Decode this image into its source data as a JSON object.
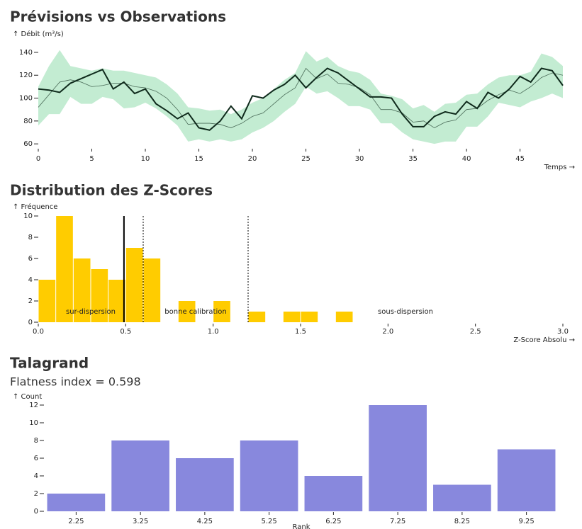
{
  "chart_data": [
    {
      "type": "line",
      "title": "Prévisions vs Observations",
      "y_label": "↑ Débit (m³/s)",
      "x_label": "Temps →",
      "x": [
        0,
        1,
        2,
        3,
        4,
        5,
        6,
        7,
        8,
        9,
        10,
        11,
        12,
        13,
        14,
        15,
        16,
        17,
        18,
        19,
        20,
        21,
        22,
        23,
        24,
        25,
        26,
        27,
        28,
        29,
        30,
        31,
        32,
        33,
        34,
        35,
        36,
        37,
        38,
        39,
        40,
        41,
        42,
        43,
        44,
        45,
        46,
        47,
        48,
        49
      ],
      "band": {
        "color": "#c3ecd2",
        "lower": [
          76,
          86,
          86,
          101,
          95,
          95,
          101,
          99,
          91,
          92,
          96,
          91,
          84,
          76,
          62,
          64,
          62,
          64,
          62,
          64,
          70,
          74,
          80,
          88,
          95,
          110,
          104,
          106,
          100,
          93,
          93,
          90,
          78,
          78,
          70,
          64,
          62,
          60,
          62,
          62,
          75,
          75,
          84,
          96,
          94,
          92,
          97,
          100,
          104,
          100
        ],
        "upper": [
          110,
          128,
          142,
          128,
          126,
          124,
          126,
          124,
          124,
          122,
          120,
          118,
          112,
          104,
          92,
          91,
          89,
          90,
          86,
          90,
          96,
          100,
          108,
          116,
          122,
          141,
          132,
          136,
          128,
          124,
          122,
          116,
          104,
          102,
          99,
          91,
          94,
          88,
          95,
          96,
          103,
          104,
          112,
          118,
          120,
          120,
          123,
          139,
          136,
          128
        ]
      },
      "forecast": {
        "color": "#4a6b58",
        "values": [
          92,
          103,
          114,
          116,
          114,
          110,
          111,
          113,
          113,
          110,
          109,
          106,
          100,
          90,
          77,
          78,
          78,
          77,
          74,
          78,
          84,
          87,
          95,
          103,
          109,
          126,
          117,
          121,
          113,
          112,
          109,
          103,
          90,
          90,
          87,
          79,
          80,
          74,
          79,
          81,
          90,
          91,
          98,
          103,
          107,
          104,
          110,
          118,
          122,
          120
        ]
      },
      "observed": {
        "color": "#0f2a1c",
        "values": [
          108,
          107,
          105,
          113,
          117,
          121,
          125,
          108,
          114,
          104,
          108,
          95,
          89,
          82,
          87,
          74,
          72,
          80,
          93,
          82,
          102,
          100,
          107,
          112,
          120,
          109,
          118,
          126,
          122,
          115,
          108,
          101,
          101,
          100,
          86,
          75,
          75,
          84,
          88,
          86,
          97,
          91,
          105,
          100,
          108,
          119,
          114,
          126,
          124,
          111
        ]
      },
      "xlim": [
        0,
        49
      ],
      "xticks": [
        0,
        5,
        10,
        15,
        20,
        25,
        30,
        35,
        40,
        45
      ],
      "ylim": [
        57,
        148
      ],
      "yticks": [
        60,
        80,
        100,
        120,
        140
      ]
    },
    {
      "type": "histogram",
      "title": "Distribution des Z-Scores",
      "y_label": "↑ Fréquence",
      "x_label": "Z-Score Absolu →",
      "color": "#ffcc00",
      "bins": [
        0,
        0.1,
        0.2,
        0.3,
        0.4,
        0.5,
        0.6,
        0.7,
        0.8,
        0.9,
        1.0,
        1.1,
        1.2,
        1.3,
        1.4,
        1.5,
        1.6,
        1.7,
        1.8
      ],
      "values": [
        4,
        10,
        6,
        5,
        4,
        7,
        6,
        0,
        2,
        0,
        2,
        0,
        1,
        0,
        1,
        1,
        0,
        1
      ],
      "xlim": [
        0,
        3
      ],
      "xticks": [
        {
          "value": 0,
          "label": "0.0"
        },
        0.5,
        {
          "value": 1,
          "label": "1.0"
        },
        1.5,
        {
          "value": 2,
          "label": "2.0"
        },
        2.5,
        {
          "value": 3,
          "label": "3.0"
        }
      ],
      "ylim": [
        0,
        10
      ],
      "yticks": [
        0,
        2,
        4,
        6,
        8,
        10
      ],
      "rules": [
        {
          "x": 0.49,
          "dashed": false
        },
        {
          "x": 0.6,
          "dashed": true
        },
        {
          "x": 1.2,
          "dashed": true
        }
      ],
      "annotations": [
        {
          "text": "sur-dispersion",
          "x": 0.3,
          "y": 1
        },
        {
          "text": "bonne calibration",
          "x": 0.9,
          "y": 1
        },
        {
          "text": "sous-dispersion",
          "x": 2.1,
          "y": 1
        }
      ]
    },
    {
      "type": "bar",
      "title": "Talagrand",
      "subtitle": "Flatness index = 0.598",
      "y_label": "↑ Count",
      "x_label": "Rank",
      "color": "#8888dd",
      "categories": [
        "2.25",
        "3.25",
        "4.25",
        "5.25",
        "6.25",
        "7.25",
        "8.25",
        "9.25"
      ],
      "values": [
        2,
        8,
        6,
        8,
        4,
        12,
        3,
        7
      ],
      "ylim": [
        0,
        12
      ],
      "yticks": [
        0,
        2,
        4,
        6,
        8,
        10,
        12
      ]
    }
  ]
}
